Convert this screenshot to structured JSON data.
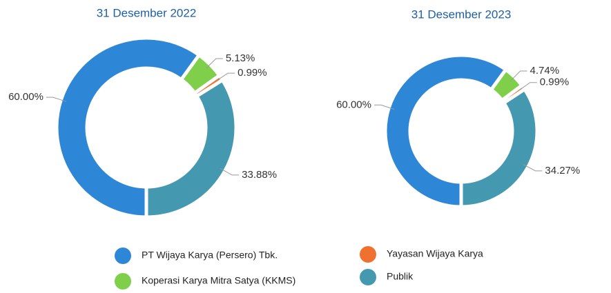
{
  "chart_data": [
    {
      "type": "donut",
      "title": "31 Desember 2022",
      "categories": [
        "PT Wijaya Karya (Persero) Tbk.",
        "Koperasi Karya Mitra Satya (KKMS)",
        "Yayasan Wijaya Karya",
        "Publik"
      ],
      "values": [
        60,
        5.13,
        0.99,
        33.88
      ],
      "value_labels": [
        "60.00%",
        "5.13%",
        "0.99%",
        "33.88%"
      ],
      "colors": [
        "#2e86d6",
        "#7fcf4a",
        "#f07030",
        "#4499b0"
      ]
    },
    {
      "type": "donut",
      "title": "31 Desember 2023",
      "categories": [
        "PT Wijaya Karya (Persero) Tbk.",
        "Koperasi Karya Mitra Satya (KKMS)",
        "Yayasan Wijaya Karya",
        "Publik"
      ],
      "values": [
        60,
        4.74,
        0.99,
        34.27
      ],
      "value_labels": [
        "60.00%",
        "4.74%",
        "0.99%",
        "34.27%"
      ],
      "colors": [
        "#2e86d6",
        "#7fcf4a",
        "#f07030",
        "#4499b0"
      ]
    }
  ]
}
